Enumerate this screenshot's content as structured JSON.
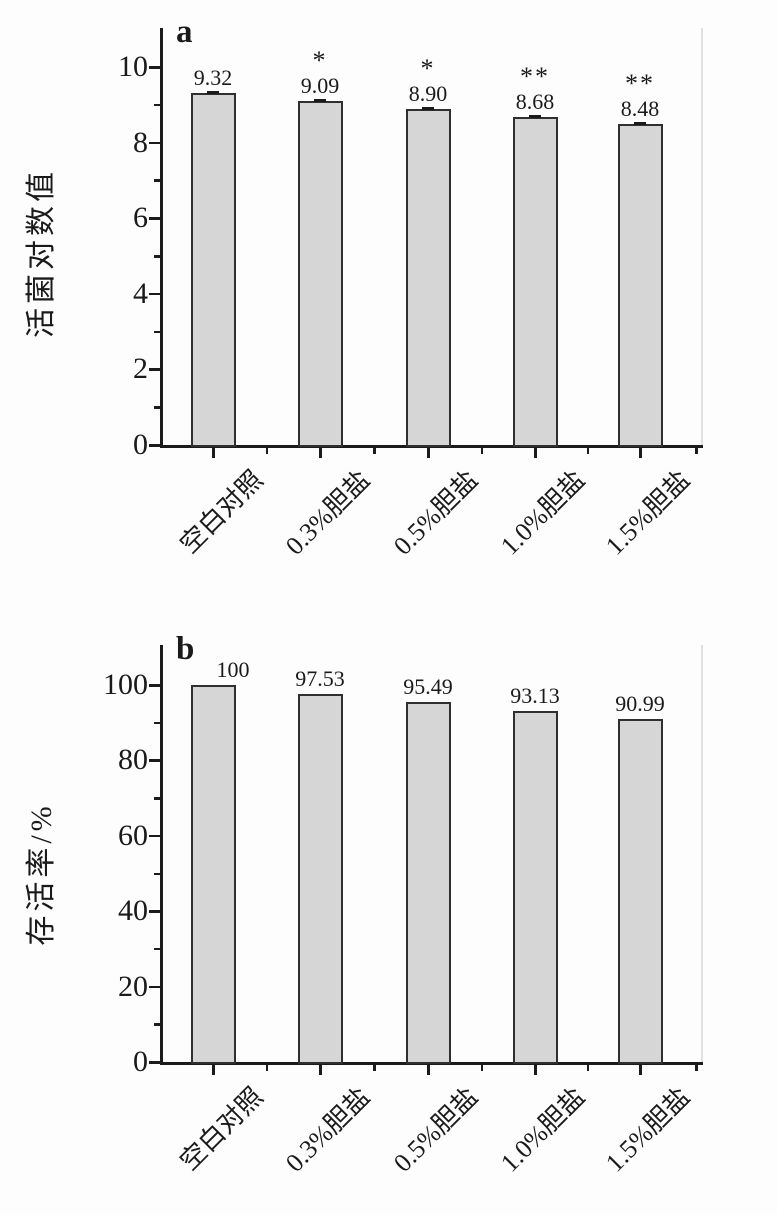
{
  "figure": {
    "background": "#fdfdfd",
    "bar_fill": "#d6d6d6",
    "bar_border": "#2f2f2f",
    "axis_color": "#1b1b1b"
  },
  "chart_data": [
    {
      "type": "bar",
      "panel_label": "a",
      "title": "",
      "xlabel": "",
      "ylabel": "活菌对数值",
      "categories": [
        "空白对照",
        "0.3%胆盐",
        "0.5%胆盐",
        "1.0%胆盐",
        "1.5%胆盐"
      ],
      "values": [
        9.32,
        9.09,
        8.9,
        8.68,
        8.48
      ],
      "data_labels": [
        "9.32",
        "9.09",
        "8.90",
        "8.68",
        "8.48"
      ],
      "significance": [
        "",
        "*",
        "*",
        "**",
        "**"
      ],
      "ylim": [
        0,
        10
      ],
      "yticks_major": [
        0,
        2,
        4,
        6,
        8,
        10
      ],
      "ytick_labels": [
        "0",
        "2",
        "4",
        "6",
        "8",
        "10"
      ],
      "yticks_minor": [
        1,
        3,
        5,
        7,
        9
      ],
      "error_caps": true,
      "legend": "none",
      "grid": "off"
    },
    {
      "type": "bar",
      "panel_label": "b",
      "title": "",
      "xlabel": "",
      "ylabel": "存活率/%",
      "categories": [
        "空白对照",
        "0.3%胆盐",
        "0.5%胆盐",
        "1.0%胆盐",
        "1.5%胆盐"
      ],
      "values": [
        100,
        97.53,
        95.49,
        93.13,
        90.99
      ],
      "data_labels": [
        "100",
        "97.53",
        "95.49",
        "93.13",
        "90.99"
      ],
      "significance": [
        "",
        "",
        "",
        "",
        ""
      ],
      "ylim": [
        0,
        100
      ],
      "yticks_major": [
        0,
        20,
        40,
        60,
        80,
        100
      ],
      "ytick_labels": [
        "0",
        "20",
        "40",
        "60",
        "80",
        "100"
      ],
      "yticks_minor": [
        10,
        30,
        50,
        70,
        90
      ],
      "error_caps": false,
      "legend": "none",
      "grid": "off"
    }
  ]
}
